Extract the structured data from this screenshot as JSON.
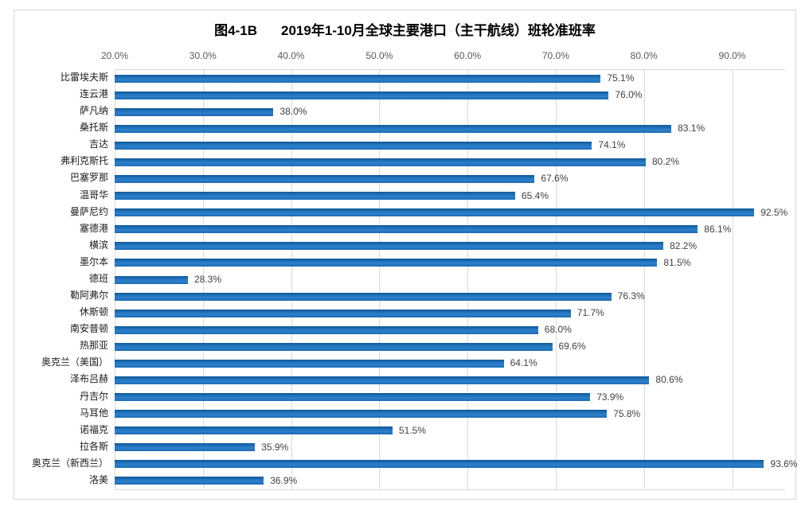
{
  "chart": {
    "figure_label": "图4-1B",
    "title_text": "2019年1-10月全球主要港口（主干航线）班轮准班率"
  },
  "chart_data": {
    "type": "bar",
    "orientation": "horizontal",
    "title": "图4-1B 2019年1-10月全球主要港口（主干航线）班轮准班率",
    "xlabel": "",
    "ylabel": "",
    "categories": [
      "比雷埃夫斯",
      "连云港",
      "萨凡纳",
      "桑托斯",
      "吉达",
      "弗利克斯托",
      "巴塞罗那",
      "温哥华",
      "曼萨尼约",
      "塞德港",
      "横滨",
      "墨尔本",
      "德班",
      "勒阿弗尔",
      "休斯顿",
      "南安普顿",
      "热那亚",
      "奥克兰（美国）",
      "泽布吕赫",
      "丹吉尔",
      "马耳他",
      "诺福克",
      "拉各斯",
      "奥克兰（新西兰）",
      "洛美"
    ],
    "values": [
      75.1,
      76.0,
      38.0,
      83.1,
      74.1,
      80.2,
      67.6,
      65.4,
      92.5,
      86.1,
      82.2,
      81.5,
      28.3,
      76.3,
      71.7,
      68.0,
      69.6,
      64.1,
      80.6,
      73.9,
      75.8,
      51.5,
      35.9,
      93.6,
      36.9
    ],
    "data_labels": [
      "75.1%",
      "76.0%",
      "38.0%",
      "83.1%",
      "74.1%",
      "80.2%",
      "67.6%",
      "65.4%",
      "92.5%",
      "86.1%",
      "82.2%",
      "81.5%",
      "28.3%",
      "76.3%",
      "71.7%",
      "68.0%",
      "69.6%",
      "64.1%",
      "80.6%",
      "73.9%",
      "75.8%",
      "51.5%",
      "35.9%",
      "93.6%",
      "36.9%"
    ],
    "xlim": [
      20,
      96
    ],
    "x_ticks": [
      20,
      30,
      40,
      50,
      60,
      70,
      80,
      90
    ],
    "x_tick_labels": [
      "20.0%",
      "30.0%",
      "40.0%",
      "50.0%",
      "60.0%",
      "70.0%",
      "80.0%",
      "90.0%"
    ],
    "x_axis_position": "top",
    "grid": true,
    "legend": "none",
    "colors": {
      "bar": "#1c6db5",
      "bar_gradient_top": "#0f5796",
      "bar_gradient_upper": "#1e6fb8",
      "bar_gradient_mid": "#2e80cc",
      "bar_gradient_bottom": "#1c6bb3",
      "gridline": "#d9d9d9",
      "tick_label": "#595959",
      "data_label": "#404040",
      "category_label": "#1a1a1a",
      "frame_border": "#d6d6d6",
      "title": "#000000",
      "background": "#ffffff"
    }
  }
}
